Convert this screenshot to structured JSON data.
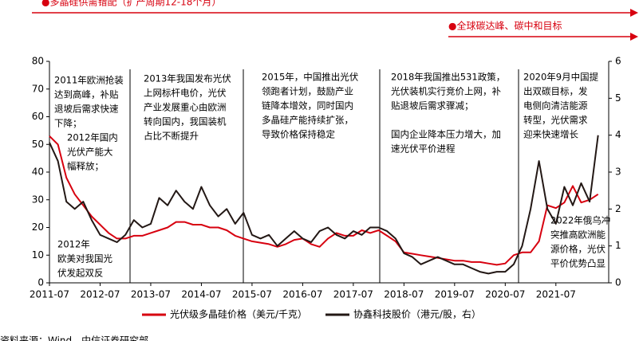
{
  "chart_data": {
    "type": "line",
    "banners": [
      "●多晶硅供需错配（扩产周期12-18个月）",
      "●全球碳达峰、碳中和目标"
    ],
    "annotations": [
      [
        "2011年欧洲抢装",
        "达到高峰，补贴",
        "退坡后需求快速",
        "下降；"
      ],
      [
        "2012年国内",
        "光伏产能大",
        "幅释放；"
      ],
      [
        "2012年",
        "欧美对我国光",
        "伏发起双反"
      ],
      [
        "2013年我国发布光伏",
        "上网标杆电价，光伏",
        "产业发展重心由欧洲",
        "转向国内，我国装机",
        "占比不断提升"
      ],
      [
        "2015年，中国推出光伏",
        "领跑者计划，鼓励产业",
        "链降本增效，同时国内",
        "多晶硅产能持续扩张，",
        "导致价格保持稳定"
      ],
      [
        "2018年我国推出531政策，",
        "光伏装机实行竞价上网，补",
        "贴退坡后需求骤减；"
      ],
      [
        "国内企业降本压力增大，加",
        "速光伏平价进程"
      ],
      [
        "2020年9月中国提",
        "出双碳目标，发",
        "电侧向清洁能源",
        "转型，光伏需求",
        "迎来快速增长"
      ],
      [
        "2022年俄乌冲",
        "突推高欧洲能",
        "源价格，光伏",
        "平价优势凸显"
      ]
    ],
    "source": "资料来源：Wind，中信证券研究部",
    "x": [
      "2011-07",
      "2011-09",
      "2011-11",
      "2012-01",
      "2012-03",
      "2012-05",
      "2012-07",
      "2012-09",
      "2012-11",
      "2013-01",
      "2013-03",
      "2013-05",
      "2013-07",
      "2013-09",
      "2013-11",
      "2014-01",
      "2014-03",
      "2014-05",
      "2014-07",
      "2014-09",
      "2014-11",
      "2015-01",
      "2015-03",
      "2015-05",
      "2015-07",
      "2015-09",
      "2015-11",
      "2016-01",
      "2016-03",
      "2016-05",
      "2016-07",
      "2016-09",
      "2016-11",
      "2017-01",
      "2017-03",
      "2017-05",
      "2017-07",
      "2017-09",
      "2017-11",
      "2018-01",
      "2018-03",
      "2018-05",
      "2018-07",
      "2018-09",
      "2018-11",
      "2019-01",
      "2019-03",
      "2019-05",
      "2019-07",
      "2019-09",
      "2019-11",
      "2020-01",
      "2020-03",
      "2020-05",
      "2020-07",
      "2020-09",
      "2020-11",
      "2021-01",
      "2021-03",
      "2021-05",
      "2021-07",
      "2021-09",
      "2021-11",
      "2022-01",
      "2022-03",
      "2022-05"
    ],
    "xticks": [
      "2011-07",
      "2012-07",
      "2013-07",
      "2014-07",
      "2015-07",
      "2016-07",
      "2017-07",
      "2018-07",
      "2019-07",
      "2020-07",
      "2021-07"
    ],
    "series": [
      {
        "name": "光伏级多晶硅价格（美元/千克）",
        "color": "#d7000f",
        "values": [
          53,
          50,
          38,
          32,
          28,
          24,
          21,
          18,
          16,
          16,
          17,
          17,
          18,
          19,
          20,
          22,
          22,
          21,
          21,
          20,
          20,
          19,
          17,
          16,
          15,
          14.5,
          14,
          13,
          14,
          15.5,
          16,
          14,
          13,
          16,
          18,
          17,
          17,
          19,
          18,
          19,
          17,
          15,
          11,
          10.5,
          10,
          9.5,
          9,
          8.5,
          8,
          8,
          7.5,
          7.5,
          7,
          6.5,
          7,
          10,
          11,
          11,
          15,
          28,
          27,
          29,
          35,
          29,
          30,
          32
        ]
      },
      {
        "name": "协鑫科技股价（港元/股，右）",
        "color": "#231815",
        "axis": "y2",
        "values": [
          3.8,
          3.3,
          2.2,
          2.0,
          2.2,
          1.7,
          1.3,
          1.2,
          1.1,
          1.3,
          1.7,
          1.5,
          1.6,
          2.3,
          2.1,
          2.5,
          2.2,
          2.0,
          2.6,
          2.1,
          1.8,
          2.0,
          1.6,
          1.9,
          1.3,
          1.2,
          1.3,
          1.0,
          1.2,
          1.4,
          1.2,
          1.1,
          1.4,
          1.5,
          1.3,
          1.2,
          1.4,
          1.3,
          1.5,
          1.5,
          1.4,
          1.2,
          0.8,
          0.7,
          0.5,
          0.6,
          0.7,
          0.6,
          0.5,
          0.5,
          0.4,
          0.3,
          0.25,
          0.3,
          0.3,
          0.5,
          1.0,
          2.0,
          3.3,
          2.0,
          1.6,
          2.6,
          2.1,
          2.7,
          2.2,
          4.0
        ]
      }
    ],
    "ylim": [
      0,
      80
    ],
    "yticks": [
      0,
      10,
      20,
      30,
      40,
      50,
      60,
      70,
      80
    ],
    "y2lim": [
      0,
      6
    ],
    "y2ticks": [
      0,
      1,
      2,
      3,
      4,
      5,
      6
    ]
  }
}
